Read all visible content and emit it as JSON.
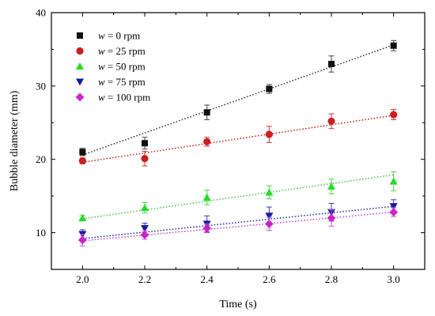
{
  "chart_data": {
    "type": "scatter",
    "xlabel": "Time (s)",
    "ylabel": "Bubble diameter (mm)",
    "xlim": [
      1.9,
      3.1
    ],
    "ylim": [
      5,
      40
    ],
    "x_ticks": [
      2.0,
      2.2,
      2.4,
      2.6,
      2.8,
      3.0
    ],
    "x_tick_labels": [
      "2.0",
      "2.2",
      "2.4",
      "2.6",
      "2.8",
      "3.0"
    ],
    "y_ticks": [
      10,
      20,
      30,
      40
    ],
    "y_tick_labels": [
      "10",
      "20",
      "30",
      "40"
    ],
    "legend_position": "top-left",
    "grid": false,
    "x": [
      2.0,
      2.2,
      2.4,
      2.6,
      2.8,
      3.0
    ],
    "series": [
      {
        "name_var": "w",
        "name_rest": " = 0 rpm",
        "marker": "square",
        "color": "#111111",
        "line_color": "#444444",
        "values": [
          21.0,
          22.2,
          26.4,
          29.6,
          33.0,
          35.5
        ],
        "errors": [
          0.5,
          0.8,
          1.0,
          0.6,
          1.1,
          0.7
        ],
        "fit": [
          20.6,
          35.6
        ]
      },
      {
        "name_var": "w",
        "name_rest": " = 25 rpm",
        "marker": "circle",
        "color": "#cc1f1f",
        "line_color": "#cc3333",
        "values": [
          19.8,
          20.1,
          22.4,
          23.4,
          25.2,
          26.1
        ],
        "errors": [
          0.4,
          1.0,
          0.6,
          1.1,
          1.0,
          0.7
        ],
        "fit": [
          19.6,
          26.0
        ]
      },
      {
        "name_var": "w",
        "name_rest": " = 50 rpm",
        "marker": "triangle-up",
        "color": "#22dd22",
        "line_color": "#55cc55",
        "values": [
          12.0,
          13.4,
          14.8,
          15.5,
          16.3,
          17.0
        ],
        "errors": [
          0.4,
          0.7,
          1.0,
          0.9,
          1.0,
          1.3
        ],
        "fit": [
          11.9,
          17.9
        ]
      },
      {
        "name_var": "w",
        "name_rest": " = 75 rpm",
        "marker": "triangle-down",
        "color": "#1a1a9e",
        "line_color": "#3a3ab0",
        "values": [
          9.8,
          10.6,
          11.2,
          12.3,
          12.8,
          13.6
        ],
        "errors": [
          0.6,
          0.7,
          1.1,
          1.2,
          1.2,
          0.9
        ],
        "fit": [
          9.2,
          13.6
        ]
      },
      {
        "name_var": "w",
        "name_rest": " = 100 rpm",
        "marker": "diamond",
        "color": "#cc22cc",
        "line_color": "#cc55cc",
        "values": [
          9.0,
          9.7,
          10.6,
          11.2,
          12.0,
          12.8
        ],
        "errors": [
          0.8,
          0.6,
          0.6,
          0.9,
          1.1,
          0.6
        ],
        "fit": [
          8.9,
          12.8
        ]
      }
    ]
  }
}
